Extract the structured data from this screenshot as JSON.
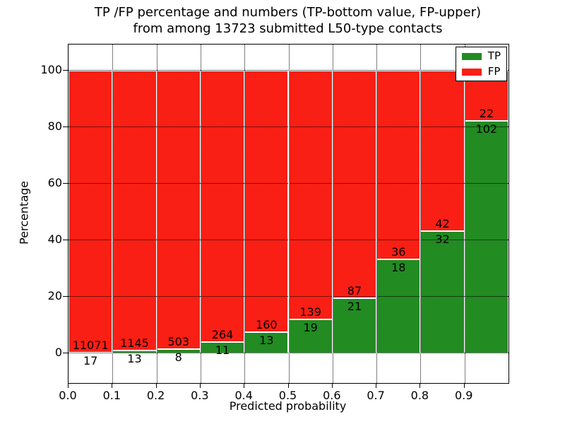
{
  "figure": {
    "title_line1": "TP /FP percentage and numbers (TP-bottom value, FP-upper)",
    "title_line2": "from among 13723 submitted L50-type contacts"
  },
  "chart_data": {
    "type": "bar",
    "stacked": true,
    "title": "TP /FP percentage and numbers (TP-bottom value, FP-upper)\nfrom among 13723 submitted L50-type contacts",
    "xlabel": "Predicted probability",
    "ylabel": "Percentage",
    "total_contacts": 13723,
    "categories": [
      "0.0-0.1",
      "0.1-0.2",
      "0.2-0.3",
      "0.3-0.4",
      "0.4-0.5",
      "0.5-0.6",
      "0.6-0.7",
      "0.7-0.8",
      "0.8-0.9",
      "0.9-1.0"
    ],
    "series": [
      {
        "name": "TP",
        "counts": [
          17,
          13,
          8,
          11,
          13,
          19,
          21,
          18,
          32,
          102
        ],
        "color": "#228b22"
      },
      {
        "name": "FP",
        "counts": [
          11071,
          1145,
          503,
          264,
          160,
          139,
          87,
          36,
          42,
          22
        ],
        "color": "#fa1f14"
      }
    ],
    "tp_pct": [
      0.153,
      1.123,
      1.566,
      4.0,
      7.514,
      12.025,
      19.444,
      33.333,
      43.243,
      82.258
    ],
    "x_ticks": [
      "0.0",
      "0.1",
      "0.2",
      "0.3",
      "0.4",
      "0.5",
      "0.6",
      "0.7",
      "0.8",
      "0.9"
    ],
    "y_ticks": [
      0,
      20,
      40,
      60,
      80,
      100
    ],
    "xlim": [
      0.0,
      1.0
    ],
    "ylim": [
      -10.5,
      109.25
    ],
    "grid": "dotted",
    "legend": {
      "position": "upper right",
      "entries": [
        {
          "label": "TP",
          "color": "#228b22"
        },
        {
          "label": "FP",
          "color": "#fa1f14"
        }
      ]
    }
  }
}
